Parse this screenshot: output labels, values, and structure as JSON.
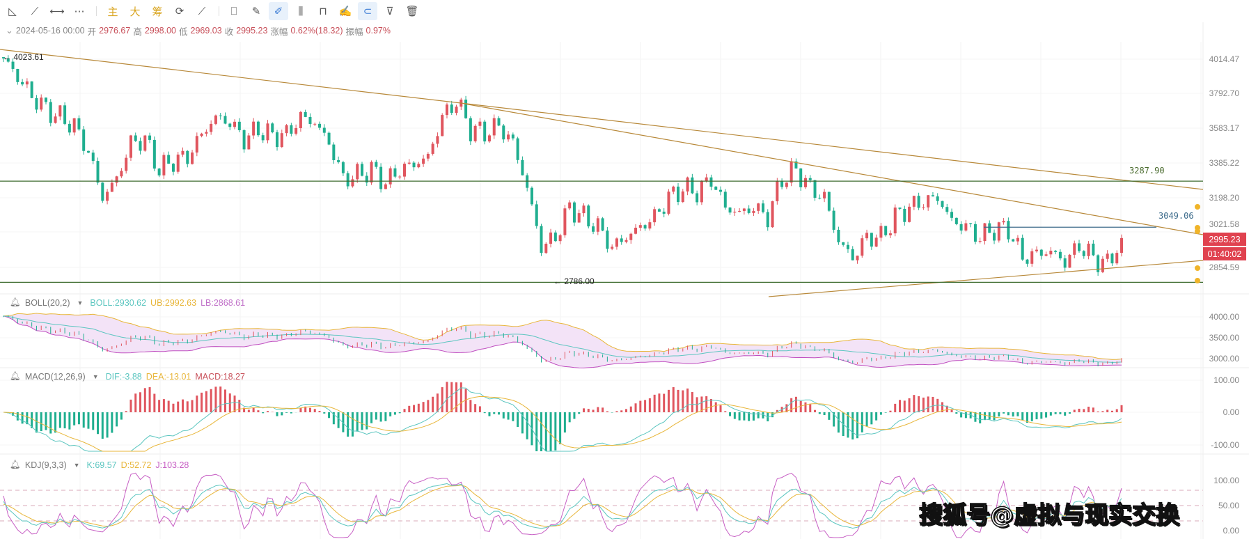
{
  "toolbar": {
    "items": [
      {
        "name": "triangle-tool-icon",
        "glyph": "◺"
      },
      {
        "name": "trend-line-tool-icon",
        "glyph": "⟋"
      },
      {
        "name": "horizontal-segment-icon",
        "glyph": "⟷"
      },
      {
        "name": "more-icon",
        "glyph": "⋯"
      },
      {
        "name": "main-chart-button",
        "glyph": "主"
      },
      {
        "name": "large-chart-button",
        "glyph": "大"
      },
      {
        "name": "chip-distribution-button",
        "glyph": "筹"
      },
      {
        "name": "draw-sync-icon",
        "glyph": "⟳"
      },
      {
        "name": "hide-drawings-icon",
        "glyph": "⟋"
      },
      {
        "name": "bookmark-icon",
        "glyph": "⎕"
      },
      {
        "name": "ruler-icon",
        "glyph": "✎"
      },
      {
        "name": "pen-drawing-icon",
        "glyph": "✐"
      },
      {
        "name": "candlestick-type-icon",
        "glyph": "⫼"
      },
      {
        "name": "lock-icon",
        "glyph": "⊓"
      },
      {
        "name": "note-edit-icon",
        "glyph": "✍"
      },
      {
        "name": "magnet-icon",
        "glyph": "⊂"
      },
      {
        "name": "filter-icon",
        "glyph": "⊽"
      },
      {
        "name": "delete-icon",
        "glyph": "🗑"
      }
    ]
  },
  "info": {
    "date": "2024-05-16 00:00",
    "open_label": "开",
    "open": "2976.67",
    "high_label": "高",
    "high": "2998.00",
    "low_label": "低",
    "low": "2969.03",
    "close_label": "收",
    "close": "2995.23",
    "change_label": "涨幅",
    "change": "0.62%(18.32)",
    "amplitude_label": "振幅",
    "amplitude": "0.97%"
  },
  "indicators": {
    "boll": {
      "name": "BOLL(20,2)",
      "mid": "BOLL:2930.62",
      "ub": "UB:2992.63",
      "lb": "LB:2868.61"
    },
    "macd": {
      "name": "MACD(12,26,9)",
      "dif": "DIF:-3.88",
      "dea": "DEA:-13.01",
      "macd": "MACD:18.27"
    },
    "kdj": {
      "name": "KDJ(9,3,3)",
      "k": "K:69.57",
      "d": "D:52.72",
      "j": "J:103.28"
    }
  },
  "price_axis": [
    "4014.47",
    "3792.70",
    "3583.17",
    "3385.22",
    "3198.20",
    "3021.58",
    "2854.59"
  ],
  "boll_axis": [
    "4000.00",
    "3500.00",
    "3000.00"
  ],
  "macd_axis": [
    "100.00",
    "0.00",
    "-100.00"
  ],
  "kdj_axis": [
    "100.00",
    "50.00",
    "0.00"
  ],
  "last_price_tag": "2995.23",
  "countdown_tag": "01:40:02",
  "annotations": {
    "high_marker": "4023.61",
    "low_marker": "2786.00",
    "resistance_label": "3287.90",
    "level_label": "3049.06"
  },
  "watermark": "搜狐号@虚拟与现实交换",
  "colors": {
    "up": "#e0555e",
    "down": "#1fae8f",
    "trendline": "#b8893a",
    "hline": "#3d6b2e",
    "level": "#3b6a8a",
    "boll_mid": "#5cc6c0",
    "boll_ub": "#e8b63a",
    "boll_lb": "#c04fc0",
    "band_fill": "#f3e3f7",
    "price_tag": "#e0424f",
    "kdj_k": "#5cc6c0",
    "kdj_d": "#e8b63a",
    "kdj_j": "#c75fc4"
  },
  "chart_data": {
    "type": "candlestick",
    "scale": "log",
    "ylim": [
      2786.0,
      4023.61
    ],
    "high": 4023.61,
    "low": 2786.0,
    "last_close": 2995.23,
    "closes": [
      4020,
      3900,
      3780,
      3700,
      3650,
      3600,
      3450,
      3200,
      3300,
      3500,
      3520,
      3350,
      3400,
      3420,
      3550,
      3650,
      3620,
      3520,
      3580,
      3540,
      3550,
      3650,
      3620,
      3500,
      3300,
      3320,
      3350,
      3280,
      3350,
      3380,
      3420,
      3650,
      3750,
      3580,
      3560,
      3600,
      3500,
      3250,
      2950,
      3000,
      3150,
      3100,
      3050,
      2950,
      3000,
      3050,
      3100,
      3200,
      3250,
      3230,
      3300,
      3150,
      3120,
      3150,
      3100,
      3300,
      3350,
      3250,
      3200,
      2980,
      2900,
      3000,
      3000,
      3100,
      3150,
      3180,
      3200,
      3080,
      3050,
      3000,
      3040,
      3040,
      2900,
      2920,
      2930,
      2880,
      2960,
      2900,
      2870,
      2995.23
    ],
    "horizontal_lines": [
      3287.9,
      3049.06,
      2786.0
    ],
    "indicators": [
      "BOLL(20,2)",
      "MACD(12,26,9)",
      "KDJ(9,3,3)"
    ]
  }
}
